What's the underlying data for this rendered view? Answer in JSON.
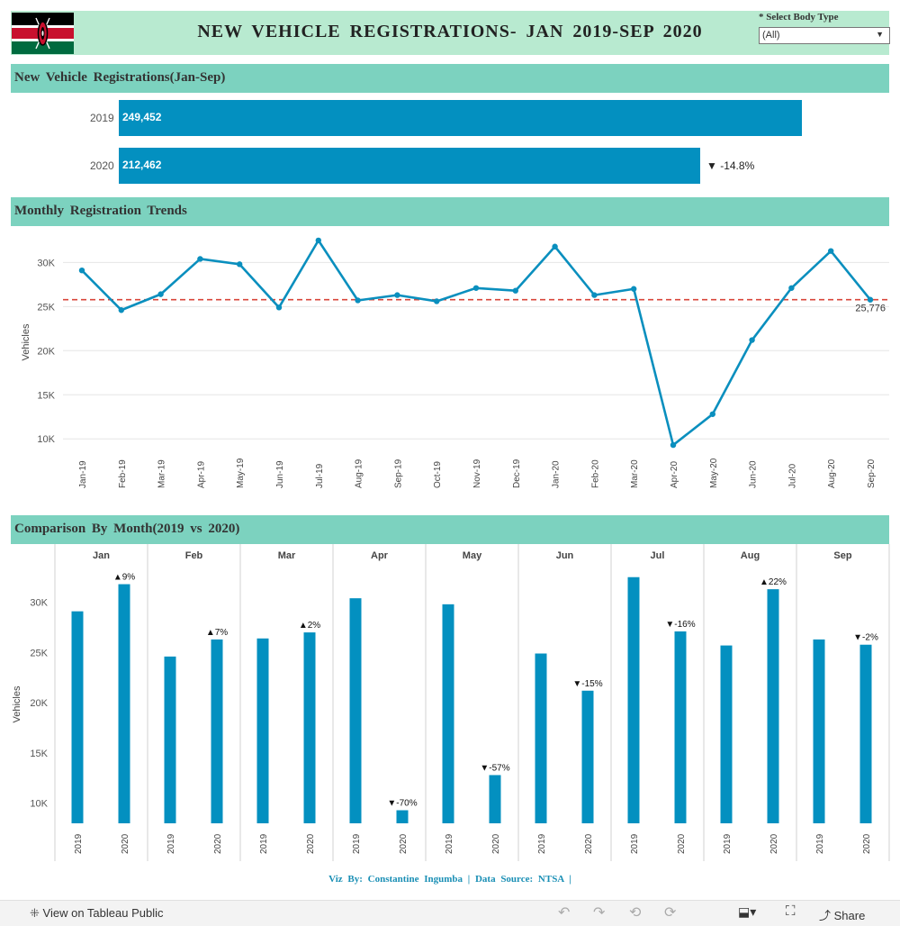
{
  "header": {
    "title": "NEW  VEHICLE  REGISTRATIONS-  JAN  2019-SEP  2020",
    "filter_label": "*  Select  Body  Type",
    "filter_value": "(All)"
  },
  "sections": {
    "totals": "New  Vehicle  Registrations(Jan-Sep)",
    "trend": "Monthly  Registration  Trends",
    "compare": "Comparison  By  Month(2019  vs  2020)"
  },
  "totals": [
    {
      "year": "2019",
      "value": 249452,
      "label": "249,452"
    },
    {
      "year": "2020",
      "value": 212462,
      "label": "212,462",
      "change": "▼ -14.8%"
    }
  ],
  "colors": {
    "bar": "#0390c0",
    "line": "#0a8fbe",
    "ref_line": "#d9453a",
    "header_band": "#b8ead0",
    "section_band": "#7cd2bf"
  },
  "chart_data": [
    {
      "type": "line",
      "title": "Monthly Registration Trends",
      "ylabel": "Vehicles",
      "ylim": [
        9000,
        33000
      ],
      "yticks": [
        10000,
        15000,
        20000,
        25000,
        30000
      ],
      "ytick_labels": [
        "10K",
        "15K",
        "20K",
        "25K",
        "30K"
      ],
      "x": [
        "Jan-19",
        "Feb-19",
        "Mar-19",
        "Apr-19",
        "May-19",
        "Jun-19",
        "Jul-19",
        "Aug-19",
        "Sep-19",
        "Oct-19",
        "Nov-19",
        "Dec-19",
        "Jan-20",
        "Feb-20",
        "Mar-20",
        "Apr-20",
        "May-20",
        "Jun-20",
        "Jul-20",
        "Aug-20",
        "Sep-20"
      ],
      "values": [
        29100,
        24600,
        26400,
        30400,
        29800,
        24900,
        32500,
        25700,
        26300,
        25600,
        27100,
        26800,
        31800,
        26300,
        27000,
        9300,
        12800,
        21200,
        27100,
        31300,
        25776
      ],
      "reference_line": {
        "value": 25776,
        "label": "25,776"
      }
    },
    {
      "type": "bar",
      "title": "Comparison By Month(2019 vs 2020)",
      "ylabel": "Vehicles",
      "ylim": [
        8000,
        34000
      ],
      "yticks": [
        10000,
        15000,
        20000,
        25000,
        30000
      ],
      "ytick_labels": [
        "10K",
        "15K",
        "20K",
        "25K",
        "30K"
      ],
      "categories": [
        "Jan",
        "Feb",
        "Mar",
        "Apr",
        "May",
        "Jun",
        "Jul",
        "Aug",
        "Sep"
      ],
      "series": [
        {
          "name": "2019",
          "values": [
            29100,
            24600,
            26400,
            30400,
            29800,
            24900,
            32500,
            25700,
            26300
          ]
        },
        {
          "name": "2020",
          "values": [
            31800,
            26300,
            27000,
            9300,
            12800,
            21200,
            27100,
            31300,
            25776
          ]
        }
      ],
      "changes": [
        "▲9%",
        "▲7%",
        "▲2%",
        "▼-70%",
        "▼-57%",
        "▼-15%",
        "▼-16%",
        "▲22%",
        "▼-2%"
      ]
    }
  ],
  "footer": {
    "credit": "Viz  By:  Constantine  Ingumba  |  Data  Source:  NTSA  |",
    "view_label": "View on Tableau Public",
    "share_label": "Share"
  }
}
